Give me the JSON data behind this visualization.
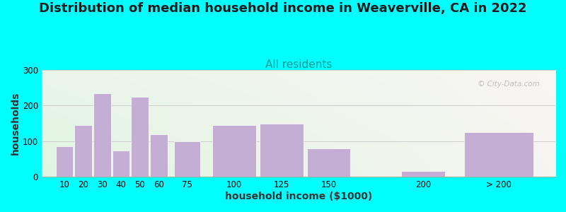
{
  "title": "Distribution of median household income in Weaverville, CA in 2022",
  "subtitle": "All residents",
  "xlabel": "household income ($1000)",
  "ylabel": "households",
  "background_color": "#00FFFF",
  "bar_color": "#c4aed4",
  "bar_edge_color": "#ffffff",
  "watermark": "© City-Data.com",
  "categories": [
    "10",
    "20",
    "30",
    "40",
    "50",
    "60",
    "75",
    "100",
    "125",
    "150",
    "200",
    "> 200"
  ],
  "x_positions": [
    10,
    20,
    30,
    40,
    50,
    60,
    75,
    100,
    125,
    150,
    200,
    240
  ],
  "bar_widths": [
    10,
    10,
    10,
    10,
    10,
    10,
    15,
    25,
    25,
    25,
    25,
    40
  ],
  "values": [
    85,
    145,
    235,
    75,
    225,
    120,
    100,
    145,
    150,
    80,
    17,
    125
  ],
  "ylim": [
    0,
    300
  ],
  "yticks": [
    0,
    100,
    200,
    300
  ],
  "xlim": [
    -2,
    270
  ],
  "title_fontsize": 13,
  "subtitle_fontsize": 11,
  "axis_label_fontsize": 10,
  "tick_fontsize": 8.5
}
